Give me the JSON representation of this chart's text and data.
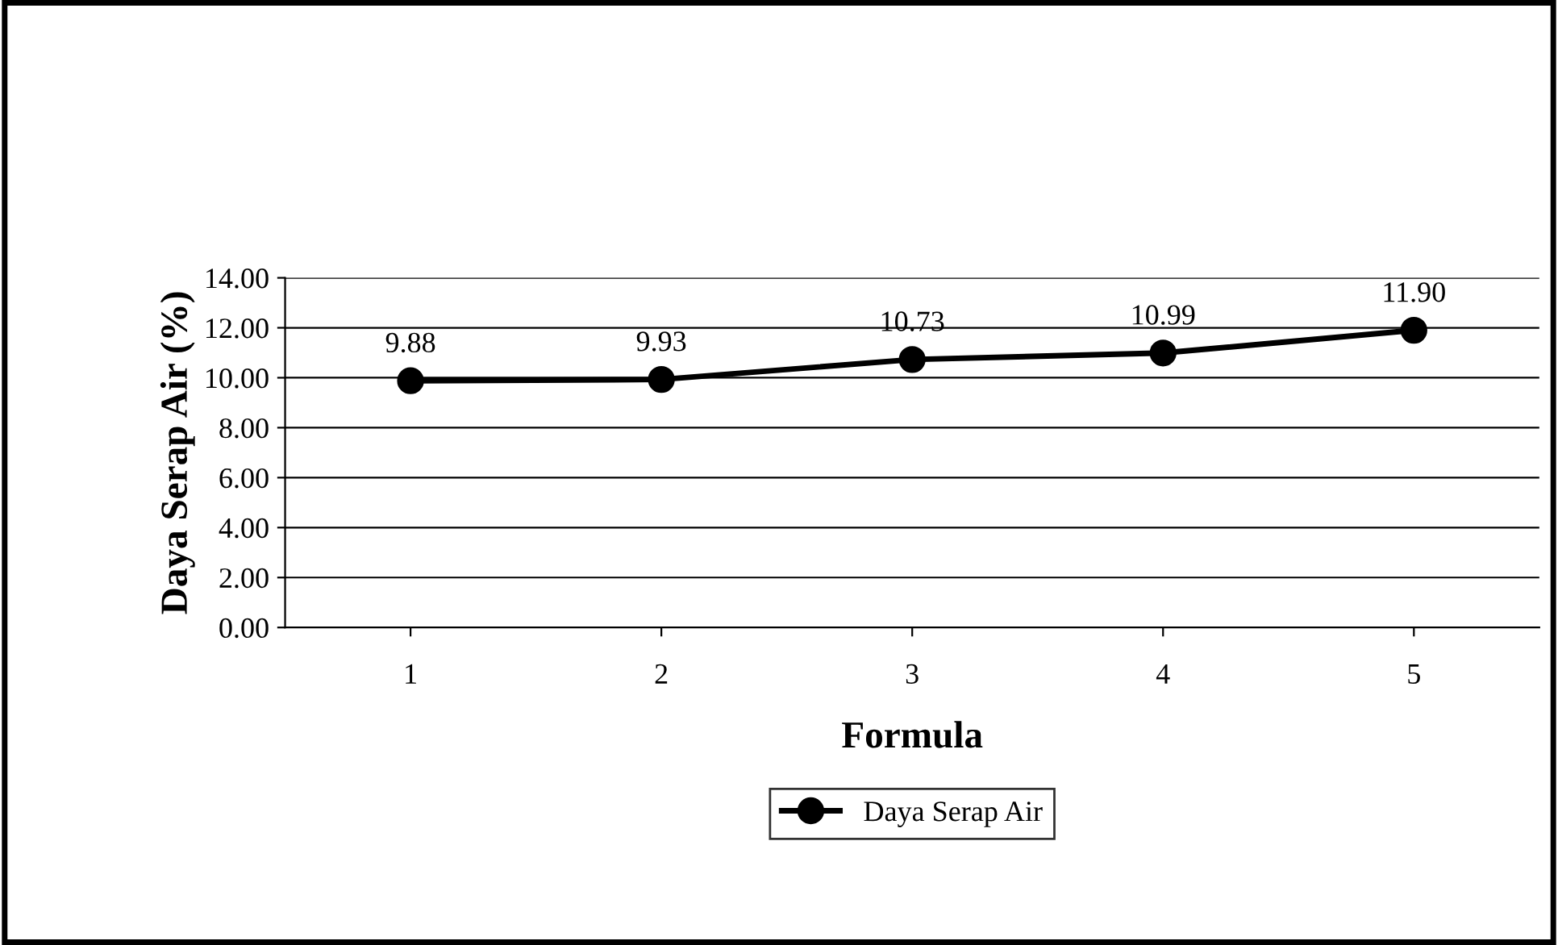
{
  "chart_data": {
    "type": "line",
    "xlabel": "Formula",
    "ylabel": "Daya Serap Air (%)",
    "categories": [
      "1",
      "2",
      "3",
      "4",
      "5"
    ],
    "series": [
      {
        "name": "Daya Serap Air",
        "color": "#000000",
        "values": [
          9.88,
          9.93,
          10.73,
          10.99,
          11.9
        ],
        "value_labels": [
          "9.88",
          "9.93",
          "10.73",
          "10.99",
          "11.90"
        ]
      }
    ],
    "ylim": [
      0,
      14
    ],
    "yticks": [
      {
        "value": 0,
        "label": "0.00"
      },
      {
        "value": 2,
        "label": "2.00"
      },
      {
        "value": 4,
        "label": "4.00"
      },
      {
        "value": 6,
        "label": "6.00"
      },
      {
        "value": 8,
        "label": "8.00"
      },
      {
        "value": 10,
        "label": "10.00"
      },
      {
        "value": 12,
        "label": "12.00"
      },
      {
        "value": 14,
        "label": "14.00"
      }
    ],
    "grid": "y",
    "legend": "bottom",
    "marker": "circle",
    "line_style": "solid"
  }
}
